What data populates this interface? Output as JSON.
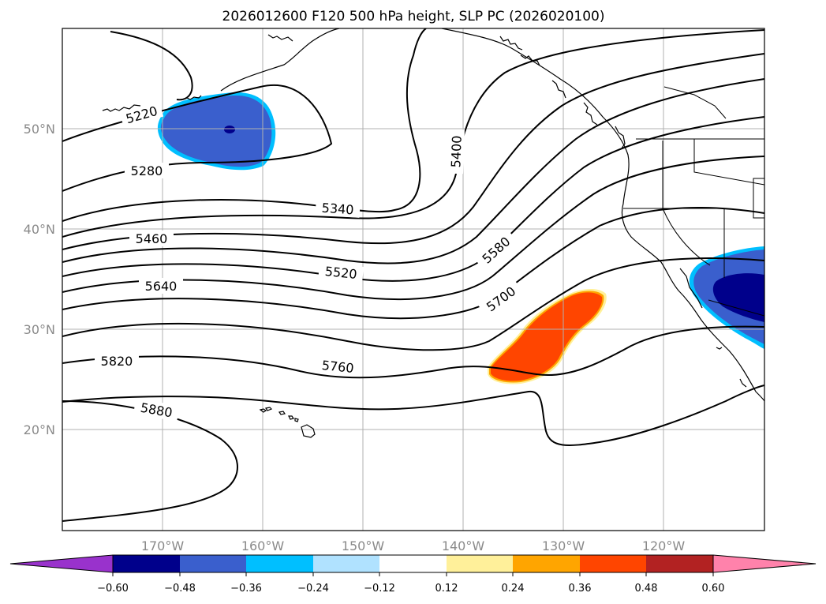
{
  "title": "2026012600 F120 500 hPa height, SLP PC (2026020100)",
  "map": {
    "lon_labels": [
      "170°W",
      "160°W",
      "150°W",
      "140°W",
      "130°W",
      "120°W"
    ],
    "lat_labels": [
      "50°N",
      "40°N",
      "30°N",
      "20°N"
    ],
    "contour_labels": [
      "5220",
      "5280",
      "5340",
      "5400",
      "5460",
      "5520",
      "5580",
      "5640",
      "5700",
      "5760",
      "5820",
      "5880"
    ],
    "anomalies": [
      {
        "name": "negative-anomaly-north-pacific",
        "sign": "negative"
      },
      {
        "name": "positive-anomaly-subtropical",
        "sign": "positive"
      },
      {
        "name": "negative-anomaly-california",
        "sign": "negative"
      }
    ]
  },
  "colorbar": {
    "ticks": [
      "−0.60",
      "−0.48",
      "−0.36",
      "−0.24",
      "−0.12",
      "0.12",
      "0.24",
      "0.36",
      "0.48",
      "0.60"
    ],
    "colors": [
      "#9932cc",
      "#00008b",
      "#3a5fcd",
      "#00bfff",
      "#b0e2ff",
      "#ffffff",
      "#fff09a",
      "#ffa500",
      "#ff4500",
      "#b22222",
      "#ff82ab"
    ]
  }
}
